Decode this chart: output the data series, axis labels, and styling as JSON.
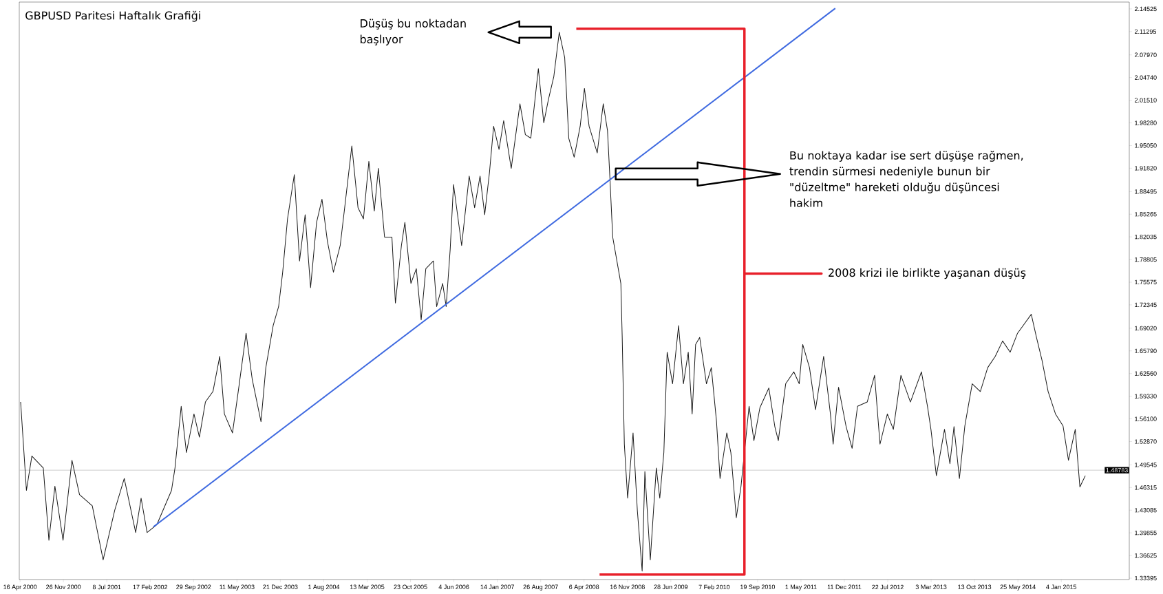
{
  "chart_data": {
    "type": "line",
    "title": "GBPUSD Paritesi Haftalık Grafiği",
    "xlim": [
      "2000-04-12",
      "2015-12-21"
    ],
    "ylim": [
      1.332,
      2.155
    ],
    "xticks": [
      {
        "value": "2000-04-16",
        "label": "16 Apr 2000"
      },
      {
        "value": "2000-11-26",
        "label": "26 Nov 2000"
      },
      {
        "value": "2001-07-08",
        "label": "8 Jul 2001"
      },
      {
        "value": "2002-02-17",
        "label": "17 Feb 2002"
      },
      {
        "value": "2002-09-29",
        "label": "29 Sep 2002"
      },
      {
        "value": "2003-05-11",
        "label": "11 May 2003"
      },
      {
        "value": "2003-12-21",
        "label": "21 Dec 2003"
      },
      {
        "value": "2004-08-01",
        "label": "1 Aug 2004"
      },
      {
        "value": "2005-03-13",
        "label": "13 Mar 2005"
      },
      {
        "value": "2005-10-23",
        "label": "23 Oct 2005"
      },
      {
        "value": "2006-06-04",
        "label": "4 Jun 2006"
      },
      {
        "value": "2007-01-14",
        "label": "14 Jan 2007"
      },
      {
        "value": "2007-08-26",
        "label": "26 Aug 2007"
      },
      {
        "value": "2008-04-06",
        "label": "6 Apr 2008"
      },
      {
        "value": "2008-11-16",
        "label": "16 Nov 2008"
      },
      {
        "value": "2009-06-28",
        "label": "28 Jun 2009"
      },
      {
        "value": "2010-02-07",
        "label": "7 Feb 2010"
      },
      {
        "value": "2010-09-19",
        "label": "19 Sep 2010"
      },
      {
        "value": "2011-05-01",
        "label": "1 May 2011"
      },
      {
        "value": "2011-12-11",
        "label": "11 Dec 2011"
      },
      {
        "value": "2012-07-22",
        "label": "22 Jul 2012"
      },
      {
        "value": "2013-03-03",
        "label": "3 Mar 2013"
      },
      {
        "value": "2013-10-13",
        "label": "13 Oct 2013"
      },
      {
        "value": "2014-05-25",
        "label": "25 May 2014"
      },
      {
        "value": "2015-01-04",
        "label": "4 Jan 2015"
      }
    ],
    "yticks": [
      2.14525,
      2.11295,
      {
        "value": 2.0797,
        "label": "2.07970"
      },
      {
        "value": 2.0474,
        "label": "2.04740"
      },
      {
        "value": 2.0151,
        "label": "2.01510"
      },
      {
        "value": 1.9828,
        "label": "1.98280"
      },
      {
        "value": 1.9505,
        "label": "1.95050"
      },
      {
        "value": 1.9182,
        "label": "1.91820"
      },
      1.88495,
      1.85265,
      1.82035,
      1.78805,
      1.75575,
      1.72345,
      {
        "value": 1.6902,
        "label": "1.69020"
      },
      {
        "value": 1.6579,
        "label": "1.65790"
      },
      {
        "value": 1.6256,
        "label": "1.62560"
      },
      {
        "value": 1.5933,
        "label": "1.59330"
      },
      {
        "value": 1.561,
        "label": "1.56100"
      },
      {
        "value": 1.5287,
        "label": "1.52870"
      },
      1.49545,
      1.46315,
      1.43085,
      1.39855,
      1.36625,
      1.33395
    ],
    "ref_lines": [
      {
        "axis": "y",
        "value": 1.48783,
        "label": "1.48783",
        "color": "#c0c0c0"
      }
    ],
    "series": [
      {
        "color": "#1a1a1a",
        "x": [
          "2000-04-19",
          "2000-05-19",
          "2000-06-16",
          "2000-08-14",
          "2000-09-12",
          "2000-10-13",
          "2000-11-24",
          "2001-01-09",
          "2001-02-17",
          "2001-04-24",
          "2001-06-19",
          "2001-08-18",
          "2001-10-06",
          "2001-12-04",
          "2002-01-01",
          "2002-02-01",
          "2002-03-23",
          "2002-06-07",
          "2002-06-25",
          "2002-07-27",
          "2002-08-23",
          "2002-10-01",
          "2002-10-29",
          "2002-11-29",
          "2003-01-07",
          "2003-02-11",
          "2003-03-07",
          "2003-04-18",
          "2003-05-23",
          "2003-06-27",
          "2003-07-29",
          "2003-09-12",
          "2003-10-07",
          "2003-11-14",
          "2003-12-12",
          "2004-01-02",
          "2004-01-27",
          "2004-03-02",
          "2004-03-29",
          "2004-04-27",
          "2004-05-25",
          "2004-06-25",
          "2004-07-23",
          "2004-08-20",
          "2004-09-20",
          "2004-10-25",
          "2004-11-15",
          "2004-12-24",
          "2005-01-25",
          "2005-02-22",
          "2005-03-22",
          "2005-04-19",
          "2005-05-10",
          "2005-06-11",
          "2005-07-19",
          "2005-08-06",
          "2005-09-06",
          "2005-09-24",
          "2005-10-25",
          "2005-11-22",
          "2005-12-17",
          "2006-01-10",
          "2006-02-18",
          "2006-03-07",
          "2006-04-07",
          "2006-04-25",
          "2006-05-16",
          "2006-06-02",
          "2006-07-14",
          "2006-08-22",
          "2006-09-19",
          "2006-10-17",
          "2006-11-10",
          "2006-12-05",
          "2006-12-26",
          "2007-01-23",
          "2007-02-16",
          "2007-03-27",
          "2007-05-11",
          "2007-06-08",
          "2007-07-06",
          "2007-08-14",
          "2007-09-11",
          "2007-10-05",
          "2007-11-02",
          "2007-11-30",
          "2007-12-28",
          "2008-01-18",
          "2008-02-15",
          "2008-03-17",
          "2008-04-08",
          "2008-05-02",
          "2008-06-13",
          "2008-07-14",
          "2008-08-05",
          "2008-08-15",
          "2008-09-01",
          "2008-10-13",
          "2008-10-20",
          "2008-10-31",
          "2008-11-17",
          "2008-12-15",
          "2009-01-06",
          "2009-01-31",
          "2009-02-14",
          "2009-03-14",
          "2009-04-14",
          "2009-05-02",
          "2009-05-23",
          "2009-06-09",
          "2009-07-07",
          "2009-08-07",
          "2009-09-01",
          "2009-09-26",
          "2009-10-16",
          "2009-11-03",
          "2009-11-24",
          "2009-12-29",
          "2010-01-23",
          "2010-02-19",
          "2010-03-09",
          "2010-04-13",
          "2010-05-04",
          "2010-06-01",
          "2010-06-25",
          "2010-07-13",
          "2010-08-06",
          "2010-08-31",
          "2010-10-01",
          "2010-11-16",
          "2010-12-17",
          "2011-01-04",
          "2011-02-11",
          "2011-03-25",
          "2011-04-22",
          "2011-05-10",
          "2011-06-14",
          "2011-07-15",
          "2011-08-26",
          "2011-09-30",
          "2011-10-14",
          "2011-11-11",
          "2011-12-20",
          "2012-01-20",
          "2012-02-17",
          "2012-04-07",
          "2012-05-15",
          "2012-06-12",
          "2012-07-20",
          "2012-08-20",
          "2012-09-28",
          "2012-11-16",
          "2013-01-12",
          "2013-02-12",
          "2013-03-02",
          "2013-03-30",
          "2013-05-11",
          "2013-06-08",
          "2013-06-29",
          "2013-07-27",
          "2013-08-24",
          "2013-10-01",
          "2013-11-12",
          "2013-12-20",
          "2014-01-28",
          "2014-03-07",
          "2014-04-15",
          "2014-05-23",
          "2014-06-21",
          "2014-08-02",
          "2014-08-29",
          "2014-09-26",
          "2014-10-28",
          "2014-12-05",
          "2015-01-13",
          "2015-02-10",
          "2015-03-17",
          "2015-04-10",
          "2015-05-08"
        ],
        "values": [
          1.585,
          1.459,
          1.508,
          1.491,
          1.388,
          1.465,
          1.388,
          1.502,
          1.453,
          1.437,
          1.36,
          1.431,
          1.476,
          1.399,
          1.448,
          1.399,
          1.41,
          1.459,
          1.491,
          1.579,
          1.513,
          1.568,
          1.535,
          1.585,
          1.6,
          1.65,
          1.568,
          1.541,
          1.611,
          1.683,
          1.617,
          1.557,
          1.634,
          1.694,
          1.721,
          1.77,
          1.846,
          1.909,
          1.786,
          1.852,
          1.748,
          1.841,
          1.874,
          1.814,
          1.77,
          1.808,
          1.857,
          1.95,
          1.862,
          1.846,
          1.928,
          1.857,
          1.918,
          1.82,
          1.82,
          1.726,
          1.808,
          1.841,
          1.754,
          1.775,
          1.702,
          1.775,
          1.786,
          1.721,
          1.754,
          1.721,
          1.803,
          1.895,
          1.808,
          1.907,
          1.862,
          1.907,
          1.852,
          1.913,
          1.978,
          1.945,
          1.986,
          1.918,
          2.01,
          1.966,
          1.961,
          2.06,
          1.983,
          2.016,
          2.049,
          2.112,
          2.076,
          1.961,
          1.934,
          1.978,
          2.032,
          1.978,
          1.94,
          2.01,
          1.972,
          1.918,
          1.82,
          1.754,
          1.677,
          1.525,
          1.448,
          1.541,
          1.431,
          1.344,
          1.486,
          1.36,
          1.491,
          1.448,
          1.513,
          1.656,
          1.611,
          1.694,
          1.611,
          1.656,
          1.568,
          1.667,
          1.677,
          1.611,
          1.634,
          1.557,
          1.476,
          1.541,
          1.513,
          1.42,
          1.464,
          1.513,
          1.579,
          1.53,
          1.577,
          1.605,
          1.55,
          1.53,
          1.611,
          1.628,
          1.611,
          1.667,
          1.634,
          1.574,
          1.65,
          1.568,
          1.525,
          1.606,
          1.55,
          1.519,
          1.579,
          1.585,
          1.623,
          1.525,
          1.568,
          1.546,
          1.623,
          1.585,
          1.628,
          1.579,
          1.546,
          1.48,
          1.546,
          1.497,
          1.55,
          1.476,
          1.551,
          1.611,
          1.6,
          1.634,
          1.65,
          1.672,
          1.656,
          1.683,
          1.694,
          1.71,
          1.677,
          1.645,
          1.6,
          1.568,
          1.551,
          1.502,
          1.546,
          1.464,
          1.48
        ]
      },
      {
        "color": "#3f6ae0",
        "x": [
          "2002-03-05",
          "2011-10-25"
        ],
        "values": [
          1.407,
          2.146
        ]
      },
      {
        "name": "2008 krizi ile birlikte yaşanan düşüş",
        "color": "#e8202a",
        "x": [
          "2008-02-26",
          "2010-07-13",
          "2010-07-13",
          "2011-08-15",
          "2010-07-13",
          "2010-07-13",
          "2008-06-25"
        ],
        "values": [
          2.117,
          2.117,
          1.768,
          1.768,
          1.768,
          1.339,
          1.339
        ]
      }
    ],
    "annotations": [
      "Düşüş bu noktadan başlıyor",
      "Bu noktaya kadar ise sert düşüşe rağmen, trendin sürmesi nedeniyle bunun bir \"düzeltme\" hareketi olduğu düşüncesi hakim"
    ]
  }
}
